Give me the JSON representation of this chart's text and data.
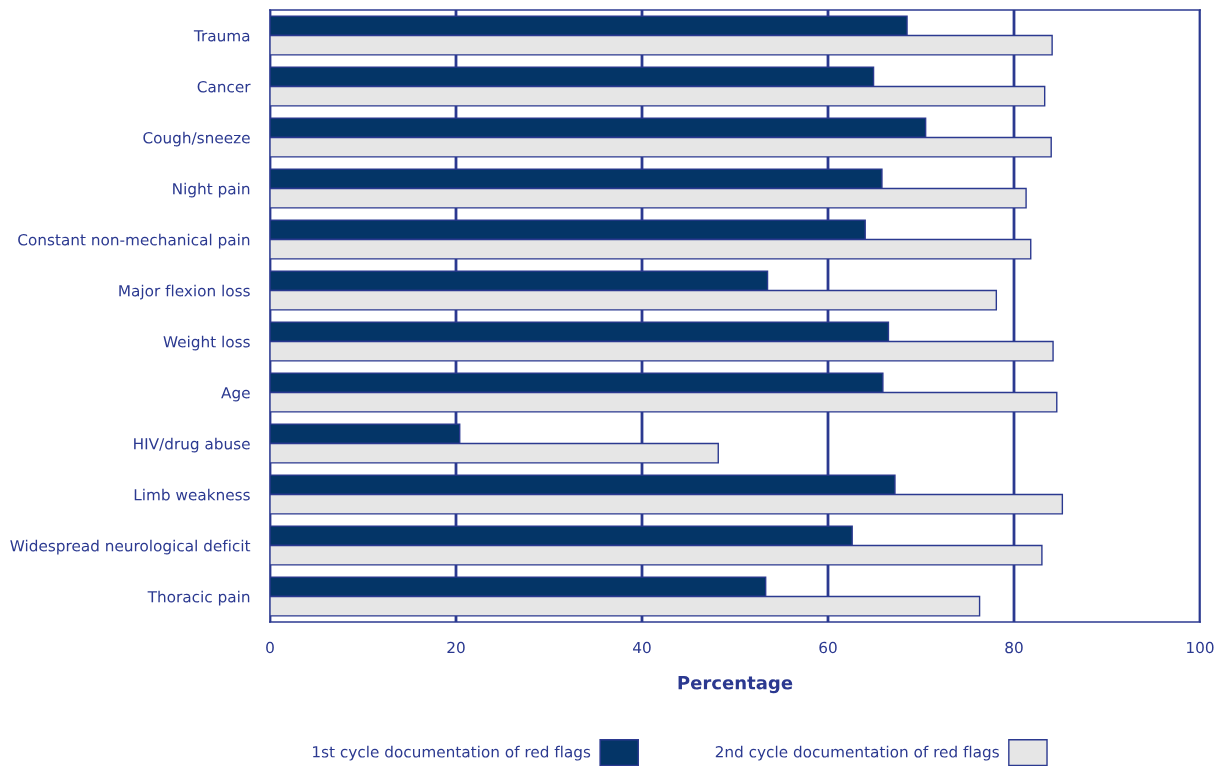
{
  "chart_data": {
    "type": "bar",
    "orientation": "horizontal",
    "xlabel": "Percentage",
    "categories": [
      "Trauma",
      "Cancer",
      "Cough/sneeze",
      "Night pain",
      "Constant non-mechanical pain",
      "Major flexion loss",
      "Weight loss",
      "Age",
      "HIV/drug abuse",
      "Limb weakness",
      "Widespread neurological deficit",
      "Thoracic pain"
    ],
    "series": [
      {
        "name": "1st cycle documentation of red flags",
        "color": "#043567",
        "values": [
          68.5,
          64.9,
          70.5,
          65.8,
          64.0,
          53.5,
          66.5,
          65.9,
          20.4,
          67.2,
          62.6,
          53.3
        ]
      },
      {
        "name": "2nd cycle documentation of red flags",
        "color": "#e6e6e6",
        "values": [
          84.1,
          83.3,
          84.0,
          81.3,
          81.8,
          78.1,
          84.2,
          84.6,
          48.2,
          85.2,
          83.0,
          76.3
        ]
      }
    ],
    "xlim": [
      0,
      100
    ],
    "xticks": [
      0,
      20,
      40,
      60,
      80,
      100
    ],
    "grid": "x",
    "legend": "bottom"
  }
}
